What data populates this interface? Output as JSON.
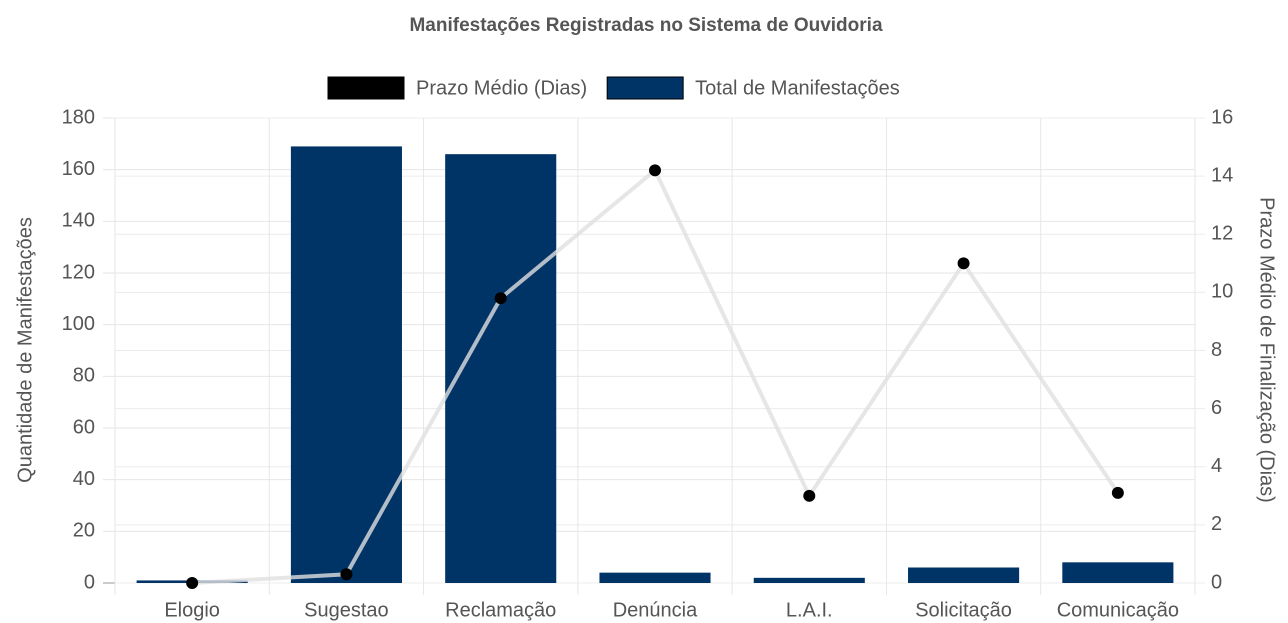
{
  "chart_data": {
    "type": "bar_line",
    "title": "Manifestações Registradas no Sistema de Ouvidoria",
    "categories": [
      "Elogio",
      "Sugestao",
      "Reclamação",
      "Denúncia",
      "L.A.I.",
      "Solicitação",
      "Comunicação"
    ],
    "series": [
      {
        "name": "Prazo Médio (Dias)",
        "type": "line",
        "axis": "y2",
        "color": "#000000",
        "line_color": "#e0e0e0",
        "values": [
          0,
          0.3,
          9.8,
          14.2,
          3,
          11,
          3.1
        ]
      },
      {
        "name": "Total de Manifestações",
        "type": "bar",
        "axis": "y",
        "color": "#003366",
        "values": [
          1,
          169,
          166,
          4,
          2,
          6,
          8
        ]
      }
    ],
    "y_label": "Quantidade de Manifestações",
    "y2_label": "Prazo Médio de Finalização (Dias)",
    "ylim": [
      0,
      180
    ],
    "yticks": [
      0,
      20,
      40,
      60,
      80,
      100,
      120,
      140,
      160,
      180
    ],
    "y2lim": [
      0,
      16
    ],
    "y2ticks": [
      0,
      2,
      4,
      6,
      8,
      10,
      12,
      14,
      16
    ],
    "grid": true,
    "legend": "top"
  }
}
